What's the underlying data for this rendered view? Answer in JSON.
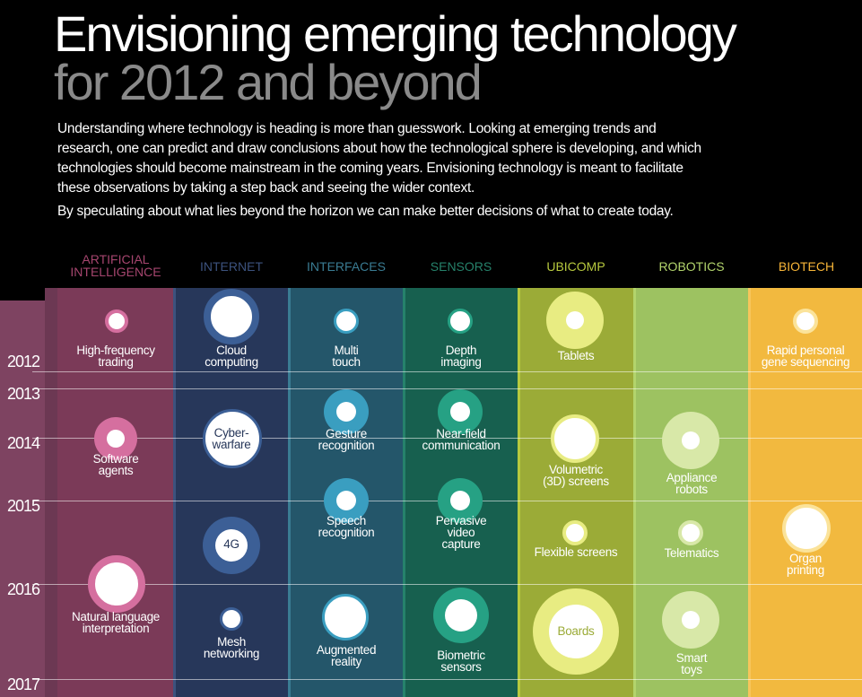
{
  "title": {
    "line1": "Envisioning emerging technology",
    "line2": "for 2012 and beyond"
  },
  "intro": {
    "p1": "Understanding where technology is heading is more than guesswork. Looking at emerging trends and research, one can predict and draw conclusions about how the technological sphere is developing, and which technologies should become mainstream in the coming years. Envisioning technology is meant to facilitate these observations by taking a step back and seeing the wider context.",
    "p2": "By speculating about what lies beyond the horizon we can make better decisions of what to create today."
  },
  "years": [
    "2012",
    "2013",
    "2014",
    "2015",
    "2016",
    "2017"
  ],
  "columns": [
    {
      "name": "ARTIFICIAL\nINTELLIGENCE",
      "color": "#7b3a58",
      "head_color": "#a5456e"
    },
    {
      "name": "INTERNET",
      "color": "#27375a",
      "head_color": "#3c527e"
    },
    {
      "name": "INTERFACES",
      "color": "#24566a",
      "head_color": "#3a7c93"
    },
    {
      "name": "SENSORS",
      "color": "#17604f",
      "head_color": "#26826b"
    },
    {
      "name": "UBICOMP",
      "color": "#9bab37",
      "head_color": "#b7c93e"
    },
    {
      "name": "ROBOTICS",
      "color": "#9dc261",
      "head_color": "#b2d46c"
    },
    {
      "name": "BIOTECH",
      "color": "#f2b93f",
      "head_color": "#f7b538"
    }
  ],
  "items": {
    "ai": [
      "High-frequency\ntrading",
      "Software\nagents",
      "Natural language\ninterpretation"
    ],
    "internet": [
      "Cloud\ncomputing",
      "Cyber-\nwarfare",
      "4G",
      "Mesh\nnetworking"
    ],
    "interfaces": [
      "Multi\ntouch",
      "Gesture\nrecognition",
      "Speech\nrecognition",
      "Augmented\nreality"
    ],
    "sensors": [
      "Depth\nimaging",
      "Near-field\ncommunication",
      "Pervasive\nvideo\ncapture",
      "Biometric\nsensors"
    ],
    "ubicomp": [
      "Tablets",
      "Volumetric\n(3D) screens",
      "Flexible screens",
      "Boards"
    ],
    "robotics": [
      "Appliance\nrobots",
      "Telematics",
      "Smart\ntoys"
    ],
    "biotech": [
      "Rapid personal\ngene sequencing",
      "Organ\nprinting"
    ]
  }
}
